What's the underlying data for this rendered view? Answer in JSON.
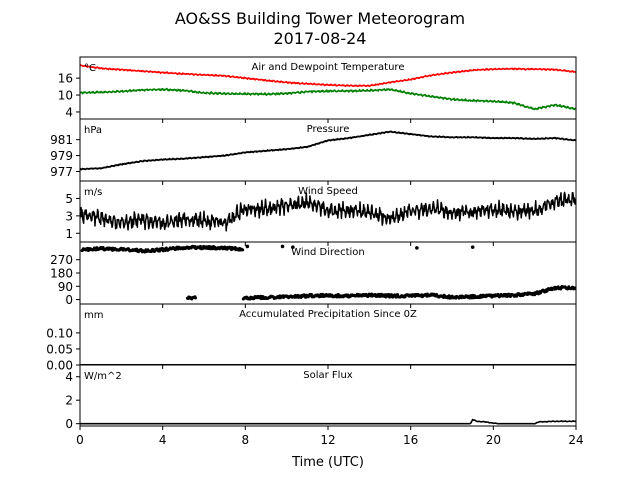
{
  "title_line1": "AO&SS Building Tower Meteorogram",
  "title_line2": "2017-08-24",
  "xlabel": "Time (UTC)",
  "colors": {
    "temperature": "#ff0000",
    "dewpoint": "#008000",
    "black": "#000000"
  },
  "chart_data": [
    {
      "type": "line",
      "title": "Air and Dewpoint Temperature",
      "units": "°C",
      "xlim": [
        0,
        24
      ],
      "ylim": [
        1.5,
        23.5
      ],
      "yticks": [
        4,
        10,
        16
      ],
      "series": [
        {
          "key": "temperature",
          "x": [
            0,
            1,
            2,
            3,
            4,
            5,
            6,
            7,
            8,
            9,
            10,
            11,
            12,
            13,
            14,
            15,
            16,
            17,
            18,
            19,
            20,
            21,
            22,
            23,
            24
          ],
          "y": [
            20.5,
            19.5,
            19.0,
            18.5,
            18.0,
            17.5,
            17.2,
            16.8,
            16.0,
            15.2,
            14.5,
            14.0,
            13.6,
            13.3,
            13.3,
            14.5,
            15.5,
            17.0,
            18.0,
            18.8,
            19.2,
            19.3,
            19.2,
            19.0,
            18.2
          ]
        },
        {
          "key": "dewpoint",
          "x": [
            0,
            1,
            2,
            3,
            4,
            5,
            6,
            7,
            8,
            9,
            10,
            11,
            12,
            13,
            14,
            15,
            16,
            17,
            18,
            19,
            20,
            21,
            22,
            23,
            24
          ],
          "y": [
            10.8,
            11.0,
            11.3,
            11.8,
            12.0,
            11.6,
            10.8,
            10.5,
            10.4,
            10.3,
            10.6,
            11.2,
            11.4,
            11.4,
            11.6,
            12.0,
            10.5,
            9.5,
            8.5,
            8.0,
            7.8,
            7.2,
            5.0,
            6.5,
            5.0
          ]
        }
      ]
    },
    {
      "type": "line",
      "title": "Pressure",
      "units": "hPa",
      "xlim": [
        0,
        24
      ],
      "ylim": [
        975.8,
        983.6
      ],
      "yticks": [
        977,
        979,
        981
      ],
      "series": [
        {
          "key": "pressure",
          "x": [
            0,
            1,
            2,
            3,
            4,
            5,
            6,
            7,
            8,
            9,
            10,
            11,
            12,
            13,
            14,
            15,
            16,
            17,
            18,
            19,
            20,
            21,
            22,
            23,
            24
          ],
          "y": [
            977.3,
            977.4,
            977.9,
            978.3,
            978.5,
            978.6,
            978.8,
            979.0,
            979.4,
            979.6,
            979.8,
            980.1,
            980.9,
            981.2,
            981.6,
            982.0,
            981.7,
            981.4,
            981.3,
            981.3,
            981.2,
            981.2,
            981.1,
            981.2,
            980.9
          ]
        }
      ]
    },
    {
      "type": "line",
      "title": "Wind Speed",
      "units": "m/s",
      "xlim": [
        0,
        24
      ],
      "ylim": [
        0,
        7
      ],
      "yticks": [
        1,
        3,
        5
      ],
      "series": [
        {
          "key": "wind_speed",
          "x": [
            0,
            1,
            2,
            3,
            4,
            5,
            6,
            7,
            8,
            9,
            10,
            11,
            12,
            13,
            14,
            15,
            16,
            17,
            18,
            19,
            20,
            21,
            22,
            23,
            24
          ],
          "y": [
            3.2,
            2.8,
            2.2,
            2.6,
            2.2,
            2.6,
            2.4,
            2.2,
            3.8,
            3.8,
            4.2,
            4.6,
            3.6,
            3.6,
            3.4,
            2.6,
            3.6,
            3.8,
            3.4,
            3.4,
            3.8,
            3.4,
            3.6,
            4.6,
            5.0
          ]
        }
      ]
    },
    {
      "type": "scatter",
      "title": "Wind Direction",
      "units": "",
      "xlim": [
        0,
        24
      ],
      "ylim": [
        -30,
        390
      ],
      "yticks": [
        0,
        90,
        180,
        270
      ],
      "series": [
        {
          "key": "wind_direction_upper",
          "x": [
            0,
            1,
            2,
            3,
            4,
            5,
            6,
            7,
            7.9
          ],
          "y": [
            335,
            345,
            340,
            330,
            338,
            352,
            352,
            350,
            340
          ]
        },
        {
          "key": "wind_direction_lower",
          "x": [
            5.3,
            8.0,
            9,
            10,
            11,
            12,
            13,
            14,
            15,
            16,
            17,
            18,
            19,
            20,
            21,
            22,
            23,
            24
          ],
          "y": [
            10,
            10,
            15,
            18,
            25,
            28,
            25,
            30,
            25,
            25,
            30,
            15,
            20,
            25,
            30,
            40,
            80,
            80
          ]
        },
        {
          "key": "wind_direction_isolated",
          "x": [
            8.1,
            9.8,
            10.3,
            16.3,
            19.0
          ],
          "y": [
            360,
            360,
            355,
            350,
            355
          ]
        }
      ]
    },
    {
      "type": "line",
      "title": "Accumulated Precipitation Since 0Z",
      "units": "mm",
      "xlim": [
        0,
        24
      ],
      "ylim": [
        0,
        0.19
      ],
      "yticks": [
        "0.00",
        "0.05",
        "0.10"
      ],
      "series": [
        {
          "key": "precipitation",
          "x": [
            0,
            24
          ],
          "y": [
            0,
            0
          ]
        }
      ]
    },
    {
      "type": "line",
      "title": "Solar Flux",
      "units": "W/m^2",
      "xlim": [
        0,
        24
      ],
      "ylim": [
        -0.2,
        5.0
      ],
      "yticks": [
        0,
        2,
        4
      ],
      "series": [
        {
          "key": "solar_flux",
          "x": [
            0,
            18.9,
            19.0,
            19.2,
            19.6,
            20.2,
            20.6,
            21.0,
            22.0,
            22.2,
            23.0,
            24.0
          ],
          "y": [
            0.0,
            0.0,
            0.35,
            0.2,
            0.15,
            0.0,
            0.0,
            0.0,
            0.0,
            0.15,
            0.2,
            0.2
          ]
        }
      ]
    }
  ],
  "xaxis": {
    "ticks": [
      0,
      4,
      8,
      12,
      16,
      20,
      24
    ]
  }
}
